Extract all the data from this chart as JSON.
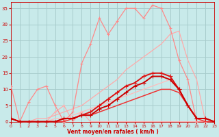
{
  "background_color": "#c8eaea",
  "grid_color": "#a8cccc",
  "xlabel": "Vent moyen/en rafales ( km/h )",
  "xlabel_color": "#cc0000",
  "tick_color": "#cc0000",
  "xlim": [
    0,
    23
  ],
  "ylim": [
    0,
    37
  ],
  "yticks": [
    0,
    5,
    10,
    15,
    20,
    25,
    30,
    35
  ],
  "xticks": [
    0,
    1,
    2,
    3,
    4,
    5,
    6,
    7,
    8,
    9,
    10,
    11,
    12,
    13,
    14,
    15,
    16,
    17,
    18,
    19,
    20,
    21,
    22,
    23
  ],
  "series": [
    {
      "x": [
        0,
        1,
        2,
        3,
        4,
        5,
        6,
        7,
        8,
        9,
        10,
        11,
        12,
        13,
        14,
        15,
        16,
        17,
        18,
        19,
        20,
        21,
        22,
        23
      ],
      "y": [
        11,
        0,
        6,
        10,
        11,
        5,
        0,
        3,
        18,
        24,
        32,
        27,
        31,
        35,
        35,
        32,
        36,
        35,
        29,
        19,
        13,
        0,
        0,
        0
      ],
      "color": "#ff8888",
      "linewidth": 0.9,
      "marker": "+",
      "markersize": 3.5,
      "zorder": 3
    },
    {
      "x": [
        0,
        1,
        2,
        3,
        4,
        5,
        6,
        7,
        8,
        9,
        10,
        11,
        12,
        13,
        14,
        15,
        16,
        17,
        18,
        19,
        20,
        21,
        22,
        23
      ],
      "y": [
        1,
        0,
        0,
        1,
        1,
        2,
        3,
        4,
        5,
        7,
        9,
        11,
        13,
        16,
        18,
        20,
        22,
        24,
        27,
        28,
        19,
        13,
        0,
        0
      ],
      "color": "#ffaaaa",
      "linewidth": 0.9,
      "marker": null,
      "markersize": 0,
      "zorder": 2
    },
    {
      "x": [
        0,
        1,
        2,
        3,
        4,
        5,
        6,
        7,
        8,
        9,
        10,
        11,
        12,
        13,
        14,
        15,
        16,
        17,
        18,
        19,
        20,
        21,
        22,
        23
      ],
      "y": [
        1,
        0,
        0,
        0,
        0,
        1,
        1,
        2,
        3,
        4,
        5,
        6,
        7,
        8,
        9,
        10,
        11,
        12,
        13,
        10,
        5,
        1,
        0,
        0
      ],
      "color": "#ffbbbb",
      "linewidth": 0.9,
      "marker": null,
      "markersize": 0,
      "zorder": 2
    },
    {
      "x": [
        0,
        1,
        2,
        3,
        4,
        5,
        6,
        7,
        8,
        9,
        10,
        11,
        12,
        13,
        14,
        15,
        16,
        17,
        18,
        19,
        20,
        21,
        22,
        23
      ],
      "y": [
        1,
        0,
        0,
        0,
        0,
        0,
        1,
        1,
        2,
        3,
        5,
        7,
        9,
        11,
        12,
        14,
        15,
        15,
        14,
        10,
        5,
        1,
        1,
        0
      ],
      "color": "#dd1111",
      "linewidth": 1.4,
      "marker": "+",
      "markersize": 4,
      "zorder": 4
    },
    {
      "x": [
        0,
        1,
        2,
        3,
        4,
        5,
        6,
        7,
        8,
        9,
        10,
        11,
        12,
        13,
        14,
        15,
        16,
        17,
        18,
        19,
        20,
        21,
        22,
        23
      ],
      "y": [
        1,
        0,
        0,
        0,
        0,
        0,
        1,
        1,
        2,
        2,
        4,
        5,
        7,
        9,
        11,
        12,
        14,
        14,
        13,
        10,
        5,
        1,
        1,
        0
      ],
      "color": "#cc0000",
      "linewidth": 1.4,
      "marker": "+",
      "markersize": 4,
      "zorder": 4
    },
    {
      "x": [
        0,
        1,
        2,
        3,
        4,
        5,
        6,
        7,
        8,
        9,
        10,
        11,
        12,
        13,
        14,
        15,
        16,
        17,
        18,
        19,
        20,
        21,
        22,
        23
      ],
      "y": [
        1,
        0,
        0,
        0,
        0,
        0,
        0,
        1,
        2,
        2,
        3,
        4,
        5,
        6,
        7,
        8,
        9,
        10,
        10,
        9,
        5,
        1,
        0,
        0
      ],
      "color": "#ee3333",
      "linewidth": 1.1,
      "marker": null,
      "markersize": 0,
      "zorder": 3
    },
    {
      "x": [
        0,
        1,
        2,
        3,
        4,
        5,
        6,
        7,
        8,
        9,
        10,
        11,
        12,
        13,
        14,
        15,
        16,
        17,
        18,
        19,
        20,
        21,
        22,
        23
      ],
      "y": [
        1,
        0,
        0,
        0,
        0,
        3,
        5,
        0,
        3,
        0,
        0,
        0,
        0,
        0,
        0,
        0,
        0,
        0,
        0,
        0,
        0,
        0,
        0,
        0
      ],
      "color": "#ffaaaa",
      "linewidth": 0.9,
      "marker": "+",
      "markersize": 3,
      "zorder": 2
    }
  ]
}
